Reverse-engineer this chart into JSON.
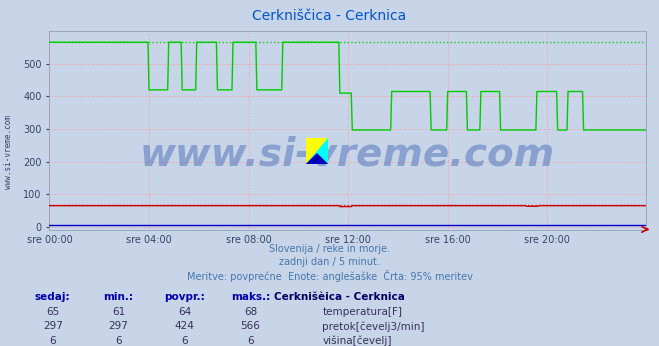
{
  "title": "Cerkniščica - Cerknica",
  "title_color": "#0055cc",
  "bg_color": "#c8d4e8",
  "plot_bg_color": "#c8d4e8",
  "grid_color": "#ff9999",
  "xlabel_ticks": [
    "sre 00:00",
    "sre 04:00",
    "sre 08:00",
    "sre 12:00",
    "sre 16:00",
    "sre 20:00"
  ],
  "tick_positions": [
    0,
    96,
    192,
    288,
    384,
    480
  ],
  "total_points": 576,
  "ylim": [
    -10,
    600
  ],
  "yticks": [
    0,
    100,
    200,
    300,
    400,
    500
  ],
  "subtitle_lines": [
    "Slovenija / reke in morje.",
    "zadnji dan / 5 minut.",
    "Meritve: povprečne  Enote: anglešaške  Črta: 95% meritev"
  ],
  "subtitle_color": "#4477aa",
  "table_header_label": "Cerknišèica - Cerknica",
  "table_data": [
    [
      "65",
      "61",
      "64",
      "68"
    ],
    [
      "297",
      "297",
      "424",
      "566"
    ],
    [
      "6",
      "6",
      "6",
      "6"
    ]
  ],
  "legend_labels": [
    "temperatura[F]",
    "pretok[čevelj3/min]",
    "višina[čevelj]"
  ],
  "legend_colors": [
    "#cc0000",
    "#00cc00",
    "#0000cc"
  ],
  "flow_max": 566,
  "temp_dotted": 68,
  "watermark_text": "www.si-vreme.com",
  "watermark_color": "#5577bb",
  "watermark_alpha": 0.55,
  "watermark_fontsize": 28
}
